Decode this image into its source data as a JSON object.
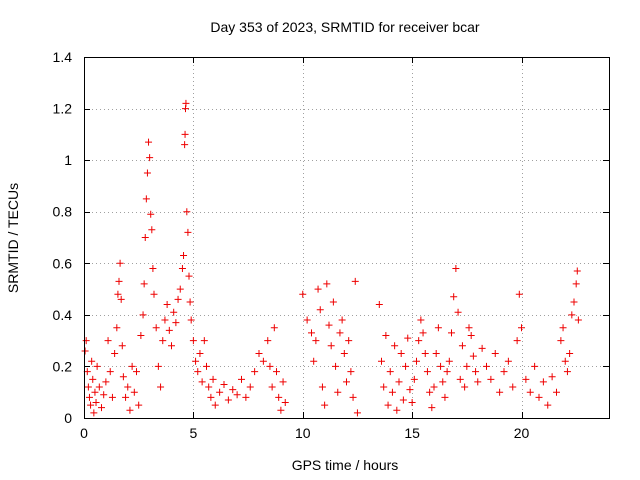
{
  "chart_data": {
    "type": "scatter",
    "title": "Day 353 of 2023, SRMTID for receiver bcar",
    "xlabel": "GPS time / hours",
    "ylabel": "SRMTID / TECUs",
    "xlim": [
      0,
      24
    ],
    "ylim": [
      0,
      1.4
    ],
    "xticks": [
      0,
      5,
      10,
      15,
      20
    ],
    "xtick_labels": [
      "0",
      "5",
      "10",
      "15",
      "20"
    ],
    "yticks": [
      0,
      0.2,
      0.4,
      0.6,
      0.8,
      1.0,
      1.2,
      1.4
    ],
    "ytick_labels": [
      "0",
      "0.2",
      "0.4",
      "0.6",
      "0.8",
      "1",
      "1.2",
      "1.4"
    ],
    "grid": true,
    "marker": "+",
    "color": "#ee0000",
    "series": [
      {
        "name": "SRMTID",
        "points": [
          [
            0.05,
            0.26
          ],
          [
            0.1,
            0.3
          ],
          [
            0.15,
            0.18
          ],
          [
            0.2,
            0.12
          ],
          [
            0.25,
            0.08
          ],
          [
            0.3,
            0.05
          ],
          [
            0.35,
            0.22
          ],
          [
            0.4,
            0.15
          ],
          [
            0.45,
            0.02
          ],
          [
            0.5,
            0.1
          ],
          [
            0.55,
            0.06
          ],
          [
            0.6,
            0.2
          ],
          [
            0.7,
            0.12
          ],
          [
            0.8,
            0.04
          ],
          [
            0.9,
            0.09
          ],
          [
            1.0,
            0.14
          ],
          [
            1.1,
            0.3
          ],
          [
            1.2,
            0.18
          ],
          [
            1.3,
            0.08
          ],
          [
            1.4,
            0.25
          ],
          [
            1.5,
            0.35
          ],
          [
            1.55,
            0.48
          ],
          [
            1.6,
            0.53
          ],
          [
            1.65,
            0.6
          ],
          [
            1.7,
            0.46
          ],
          [
            1.75,
            0.28
          ],
          [
            1.8,
            0.16
          ],
          [
            1.9,
            0.08
          ],
          [
            2.0,
            0.12
          ],
          [
            2.1,
            0.03
          ],
          [
            2.2,
            0.2
          ],
          [
            2.3,
            0.1
          ],
          [
            2.4,
            0.18
          ],
          [
            2.5,
            0.05
          ],
          [
            2.6,
            0.32
          ],
          [
            2.7,
            0.4
          ],
          [
            2.75,
            0.52
          ],
          [
            2.8,
            0.7
          ],
          [
            2.85,
            0.85
          ],
          [
            2.9,
            0.95
          ],
          [
            2.95,
            1.07
          ],
          [
            3.0,
            1.01
          ],
          [
            3.05,
            0.79
          ],
          [
            3.1,
            0.73
          ],
          [
            3.15,
            0.58
          ],
          [
            3.2,
            0.48
          ],
          [
            3.3,
            0.35
          ],
          [
            3.4,
            0.2
          ],
          [
            3.5,
            0.12
          ],
          [
            3.6,
            0.3
          ],
          [
            3.7,
            0.38
          ],
          [
            3.8,
            0.44
          ],
          [
            3.9,
            0.34
          ],
          [
            4.0,
            0.28
          ],
          [
            4.1,
            0.41
          ],
          [
            4.2,
            0.37
          ],
          [
            4.3,
            0.46
          ],
          [
            4.4,
            0.5
          ],
          [
            4.5,
            0.58
          ],
          [
            4.55,
            0.63
          ],
          [
            4.6,
            1.06
          ],
          [
            4.62,
            1.1
          ],
          [
            4.64,
            1.2
          ],
          [
            4.66,
            1.22
          ],
          [
            4.7,
            0.8
          ],
          [
            4.75,
            0.72
          ],
          [
            4.8,
            0.55
          ],
          [
            4.85,
            0.45
          ],
          [
            4.9,
            0.38
          ],
          [
            5.0,
            0.3
          ],
          [
            5.1,
            0.22
          ],
          [
            5.2,
            0.18
          ],
          [
            5.3,
            0.25
          ],
          [
            5.4,
            0.14
          ],
          [
            5.5,
            0.3
          ],
          [
            5.6,
            0.2
          ],
          [
            5.7,
            0.12
          ],
          [
            5.8,
            0.08
          ],
          [
            5.9,
            0.15
          ],
          [
            6.0,
            0.05
          ],
          [
            6.2,
            0.1
          ],
          [
            6.4,
            0.13
          ],
          [
            6.6,
            0.07
          ],
          [
            6.8,
            0.11
          ],
          [
            7.0,
            0.09
          ],
          [
            7.2,
            0.15
          ],
          [
            7.4,
            0.08
          ],
          [
            7.6,
            0.12
          ],
          [
            7.8,
            0.18
          ],
          [
            8.0,
            0.25
          ],
          [
            8.2,
            0.22
          ],
          [
            8.4,
            0.3
          ],
          [
            8.5,
            0.2
          ],
          [
            8.6,
            0.12
          ],
          [
            8.7,
            0.35
          ],
          [
            8.8,
            0.18
          ],
          [
            8.9,
            0.08
          ],
          [
            9.0,
            0.03
          ],
          [
            9.1,
            0.14
          ],
          [
            9.2,
            0.06
          ],
          [
            10.0,
            0.48
          ],
          [
            10.2,
            0.38
          ],
          [
            10.4,
            0.33
          ],
          [
            10.5,
            0.22
          ],
          [
            10.6,
            0.3
          ],
          [
            10.7,
            0.5
          ],
          [
            10.8,
            0.42
          ],
          [
            10.9,
            0.12
          ],
          [
            11.0,
            0.05
          ],
          [
            11.1,
            0.52
          ],
          [
            11.2,
            0.36
          ],
          [
            11.3,
            0.28
          ],
          [
            11.4,
            0.45
          ],
          [
            11.5,
            0.2
          ],
          [
            11.6,
            0.1
          ],
          [
            11.7,
            0.33
          ],
          [
            11.8,
            0.38
          ],
          [
            11.9,
            0.25
          ],
          [
            12.0,
            0.14
          ],
          [
            12.1,
            0.3
          ],
          [
            12.2,
            0.18
          ],
          [
            12.3,
            0.08
          ],
          [
            12.4,
            0.53
          ],
          [
            12.5,
            0.02
          ],
          [
            13.5,
            0.44
          ],
          [
            13.6,
            0.22
          ],
          [
            13.7,
            0.12
          ],
          [
            13.8,
            0.32
          ],
          [
            13.9,
            0.05
          ],
          [
            14.0,
            0.18
          ],
          [
            14.1,
            0.1
          ],
          [
            14.2,
            0.28
          ],
          [
            14.3,
            0.03
          ],
          [
            14.4,
            0.14
          ],
          [
            14.5,
            0.25
          ],
          [
            14.6,
            0.07
          ],
          [
            14.7,
            0.2
          ],
          [
            14.8,
            0.31
          ],
          [
            14.9,
            0.11
          ],
          [
            15.0,
            0.06
          ],
          [
            15.1,
            0.15
          ],
          [
            15.2,
            0.22
          ],
          [
            15.3,
            0.3
          ],
          [
            15.4,
            0.38
          ],
          [
            15.5,
            0.33
          ],
          [
            15.6,
            0.25
          ],
          [
            15.7,
            0.18
          ],
          [
            15.8,
            0.1
          ],
          [
            15.9,
            0.04
          ],
          [
            16.0,
            0.12
          ],
          [
            16.1,
            0.25
          ],
          [
            16.2,
            0.35
          ],
          [
            16.3,
            0.2
          ],
          [
            16.4,
            0.14
          ],
          [
            16.5,
            0.08
          ],
          [
            16.6,
            0.18
          ],
          [
            16.7,
            0.22
          ],
          [
            16.8,
            0.33
          ],
          [
            16.9,
            0.47
          ],
          [
            17.0,
            0.58
          ],
          [
            17.1,
            0.41
          ],
          [
            17.2,
            0.15
          ],
          [
            17.3,
            0.28
          ],
          [
            17.4,
            0.12
          ],
          [
            17.5,
            0.2
          ],
          [
            17.6,
            0.35
          ],
          [
            17.7,
            0.32
          ],
          [
            17.8,
            0.24
          ],
          [
            17.9,
            0.18
          ],
          [
            18.0,
            0.14
          ],
          [
            18.2,
            0.27
          ],
          [
            18.4,
            0.2
          ],
          [
            18.6,
            0.15
          ],
          [
            18.8,
            0.25
          ],
          [
            19.0,
            0.1
          ],
          [
            19.2,
            0.18
          ],
          [
            19.4,
            0.22
          ],
          [
            19.6,
            0.12
          ],
          [
            19.8,
            0.3
          ],
          [
            19.9,
            0.48
          ],
          [
            20.0,
            0.35
          ],
          [
            20.2,
            0.15
          ],
          [
            20.4,
            0.1
          ],
          [
            20.6,
            0.2
          ],
          [
            20.8,
            0.08
          ],
          [
            21.0,
            0.14
          ],
          [
            21.2,
            0.05
          ],
          [
            21.4,
            0.16
          ],
          [
            21.6,
            0.1
          ],
          [
            21.8,
            0.3
          ],
          [
            21.9,
            0.35
          ],
          [
            22.0,
            0.22
          ],
          [
            22.1,
            0.18
          ],
          [
            22.2,
            0.25
          ],
          [
            22.3,
            0.4
          ],
          [
            22.4,
            0.45
          ],
          [
            22.5,
            0.52
          ],
          [
            22.55,
            0.57
          ],
          [
            22.6,
            0.38
          ]
        ]
      }
    ]
  }
}
